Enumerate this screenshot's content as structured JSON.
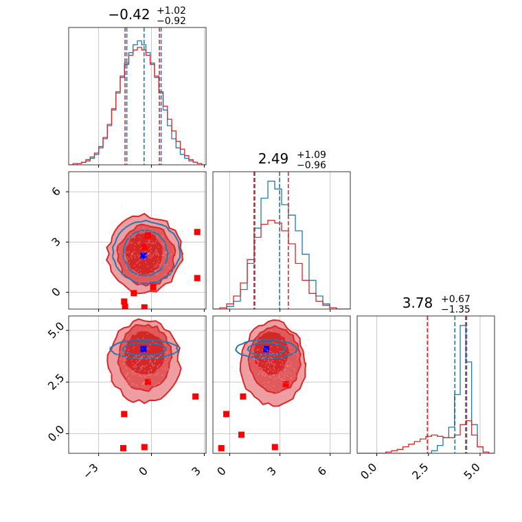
{
  "chart_data": {
    "type": "corner",
    "colors": {
      "blue": "#1f77b4",
      "red": "#d62728",
      "red_fill": "#e88a8c",
      "red_dark": "#d62728",
      "marker_red": "#ff0000",
      "marker_blue": "#0000ff",
      "grid": "#c8c8c8"
    },
    "params": [
      {
        "title_value": "−0.42",
        "title_plus": "+1.02",
        "title_minus": "−0.92",
        "range": [
          -4.7,
          3.1
        ],
        "ticks": [
          -3,
          0,
          3
        ],
        "tick_labels": [
          "−3",
          "0",
          "3"
        ],
        "quantiles_blue": [
          -1.4,
          -0.42,
          0.55
        ],
        "quantiles_red": [
          -1.5,
          0.45
        ]
      },
      {
        "title_value": "2.49",
        "title_plus": "+1.09",
        "title_minus": "−0.96",
        "range": [
          -1.0,
          7.2
        ],
        "ticks": [
          0,
          3,
          6
        ],
        "tick_labels": [
          "0",
          "3",
          "6"
        ],
        "quantiles_blue": [
          1.45,
          2.98
        ],
        "quantiles_red": [
          1.5,
          3.5
        ]
      },
      {
        "title_value": "3.78",
        "title_plus": "+0.67",
        "title_minus": "−1.35",
        "range": [
          -0.95,
          5.7
        ],
        "ticks": [
          0.0,
          2.5,
          5.0
        ],
        "tick_labels": [
          "0.0",
          "2.5",
          "5.0"
        ],
        "quantiles_blue": [
          3.78,
          4.3
        ],
        "quantiles_red": [
          2.45,
          4.35
        ]
      }
    ],
    "truth_blue": [
      -0.45,
      2.18,
      4.1
    ],
    "red_markers": {
      "p01": [
        [
          -0.2,
          3.4
        ],
        [
          -0.4,
          2.7
        ],
        [
          0.1,
          0.3
        ],
        [
          -1.0,
          -0.05
        ],
        [
          -1.55,
          -0.55
        ],
        [
          -1.5,
          -0.85
        ],
        [
          -0.4,
          -0.9
        ],
        [
          2.6,
          0.85
        ],
        [
          2.6,
          3.6
        ]
      ],
      "p02": [
        [
          -1.55,
          0.95
        ],
        [
          -1.6,
          -0.7
        ],
        [
          -0.4,
          -0.65
        ],
        [
          2.5,
          1.8
        ],
        [
          -0.2,
          2.5
        ]
      ],
      "p12": [
        [
          -0.5,
          -0.7
        ],
        [
          -0.2,
          0.95
        ],
        [
          0.7,
          -0.05
        ],
        [
          0.8,
          1.8
        ],
        [
          2.7,
          -0.65
        ],
        [
          3.35,
          2.4
        ]
      ]
    },
    "hist": {
      "p0_blue": [
        0,
        0,
        0.01,
        0.02,
        0.03,
        0.05,
        0.08,
        0.13,
        0.2,
        0.3,
        0.42,
        0.55,
        0.67,
        0.78,
        0.86,
        0.92,
        0.95,
        0.92,
        0.86,
        0.78,
        0.67,
        0.55,
        0.42,
        0.3,
        0.2,
        0.13,
        0.08,
        0.05,
        0.03,
        0.02,
        0.01,
        0
      ],
      "p0_red": [
        0,
        0.01,
        0.01,
        0.02,
        0.04,
        0.06,
        0.09,
        0.14,
        0.21,
        0.31,
        0.43,
        0.56,
        0.68,
        0.77,
        0.84,
        0.88,
        0.9,
        0.88,
        0.84,
        0.77,
        0.68,
        0.56,
        0.45,
        0.35,
        0.26,
        0.18,
        0.12,
        0.07,
        0.04,
        0.02,
        0.01,
        0
      ],
      "p1_blue": [
        0,
        0,
        0.02,
        0.06,
        0.15,
        0.35,
        0.62,
        0.85,
        0.98,
        0.92,
        0.8,
        0.72,
        0.6,
        0.42,
        0.22,
        0.1,
        0.04,
        0.01,
        0,
        0
      ],
      "p1_red": [
        0,
        0.01,
        0.04,
        0.1,
        0.2,
        0.38,
        0.55,
        0.65,
        0.68,
        0.66,
        0.6,
        0.5,
        0.35,
        0.22,
        0.12,
        0.06,
        0.03,
        0.01,
        0,
        0
      ],
      "p2_blue": [
        0,
        0,
        0,
        0,
        0,
        0,
        0,
        0,
        0,
        0,
        0,
        0,
        0,
        0.02,
        0.06,
        0.12,
        0.2,
        0.45,
        0.98,
        0.7,
        0.22,
        0.05,
        0.01,
        0
      ],
      "p2_red": [
        0,
        0,
        0,
        0,
        0,
        0.01,
        0.02,
        0.03,
        0.05,
        0.07,
        0.09,
        0.11,
        0.13,
        0.14,
        0.13,
        0.12,
        0.12,
        0.14,
        0.22,
        0.25,
        0.14,
        0.05,
        0.01,
        0
      ]
    }
  }
}
